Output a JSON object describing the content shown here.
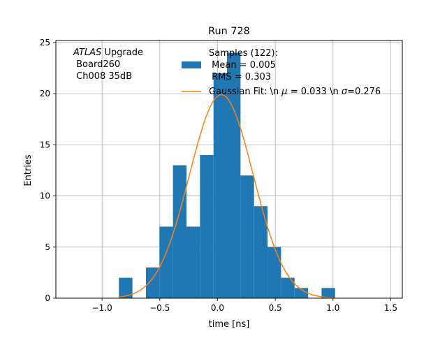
{
  "chart_data": {
    "type": "bar",
    "title": "Run 728",
    "xlabel": "time [ns]",
    "ylabel": "Entries",
    "xlim": [
      -1.4,
      1.6
    ],
    "ylim": [
      0,
      25.2
    ],
    "xticks": [
      -1.0,
      -0.5,
      0.0,
      0.5,
      1.0,
      1.5
    ],
    "xtick_labels": [
      "−1.0",
      "−0.5",
      "0.0",
      "0.5",
      "1.0",
      "1.5"
    ],
    "yticks": [
      0,
      5,
      10,
      15,
      20,
      25
    ],
    "ytick_labels": [
      "0",
      "5",
      "10",
      "15",
      "20",
      "25"
    ],
    "grid": true,
    "annotation": {
      "atlas": "ATLAS",
      "line1_rest": " Upgrade",
      "line2": " Board260",
      "line3": " Ch008 35dB"
    },
    "histogram": {
      "name_lines": [
        "Samples (122):",
        " Mean = 0.005",
        " RMS = 0.303"
      ],
      "color": "#1f77b4",
      "bin_edges": [
        -0.854,
        -0.737,
        -0.62,
        -0.503,
        -0.386,
        -0.269,
        -0.152,
        -0.035,
        0.082,
        0.199,
        0.316,
        0.433,
        0.55,
        0.667,
        0.784,
        0.901,
        1.018
      ],
      "counts": [
        2,
        0,
        3,
        7,
        13,
        7,
        14,
        22,
        24,
        12,
        9,
        5,
        2,
        1,
        0,
        1
      ]
    },
    "fit": {
      "name_parts": [
        "Gaussian Fit: \\n ",
        "μ",
        " = 0.033 \\n ",
        "σ",
        "=0.276"
      ],
      "color": "#ff7f0e",
      "amplitude": 19.9,
      "mu": 0.033,
      "sigma": 0.276,
      "x_range": [
        -0.854,
        1.018
      ]
    },
    "legend_placement": "upper center"
  }
}
